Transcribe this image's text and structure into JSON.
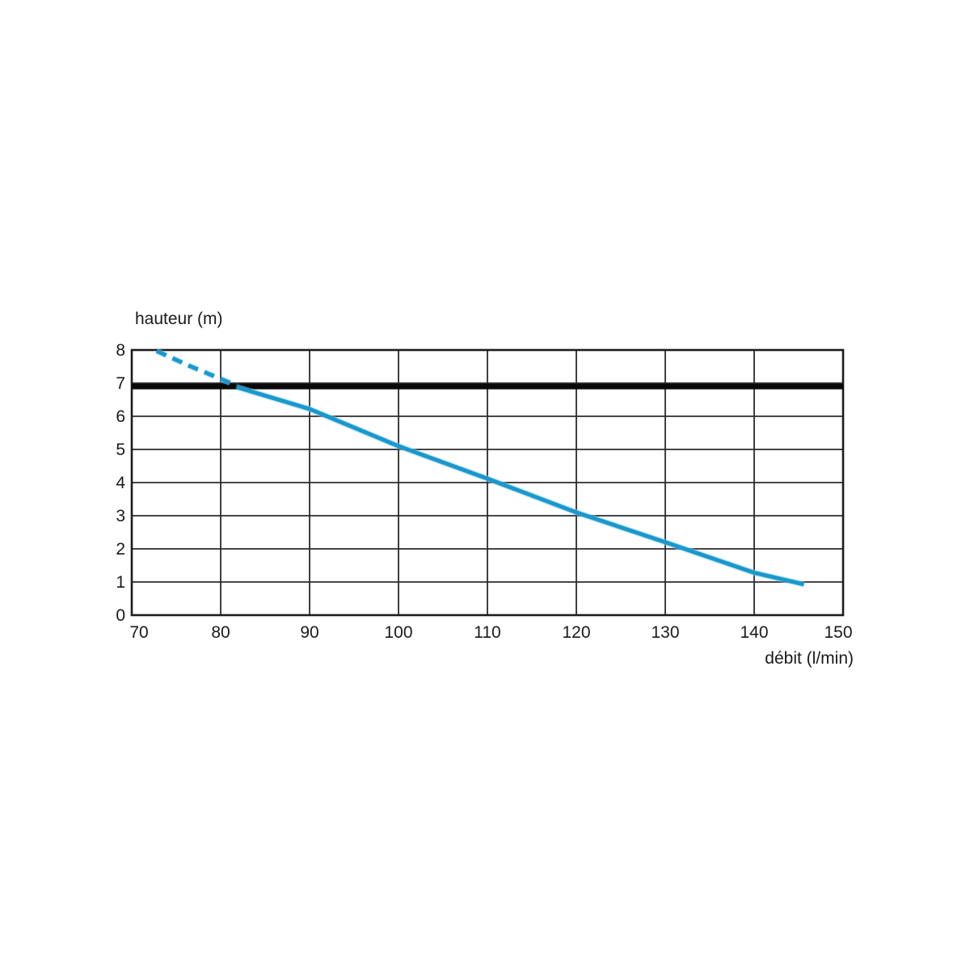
{
  "chart_data": {
    "type": "line",
    "title": "",
    "xlabel": "débit (l/min)",
    "ylabel": "hauteur (m)",
    "xlim": [
      70,
      150
    ],
    "ylim": [
      0,
      8
    ],
    "x_ticks": [
      70,
      80,
      90,
      100,
      110,
      120,
      130,
      140,
      150
    ],
    "y_ticks": [
      0,
      1,
      2,
      3,
      4,
      5,
      6,
      7,
      8
    ],
    "grid": true,
    "legend": "none",
    "colors": {
      "curve": "#1c97cc",
      "curve_halo": "#7fd0ea",
      "grid": "#2b2b2b",
      "border": "#1c1c1c",
      "reference": "#0a0a0a",
      "text": "#1a1a1a",
      "background": "#ffffff"
    },
    "reference_line": {
      "y": 6.9,
      "thickness": 7
    },
    "series": [
      {
        "name": "pump-curve-dashed-segment",
        "style": "dashed",
        "points": [
          [
            72.8,
            7.97
          ],
          [
            76.5,
            7.52
          ],
          [
            81.8,
            6.93
          ]
        ]
      },
      {
        "name": "pump-curve-solid-segment",
        "style": "solid",
        "points": [
          [
            81.8,
            6.88
          ],
          [
            90,
            6.22
          ],
          [
            100,
            5.1
          ],
          [
            110,
            4.12
          ],
          [
            120,
            3.1
          ],
          [
            130,
            2.2
          ],
          [
            140,
            1.28
          ],
          [
            145.6,
            0.93
          ]
        ]
      }
    ]
  }
}
